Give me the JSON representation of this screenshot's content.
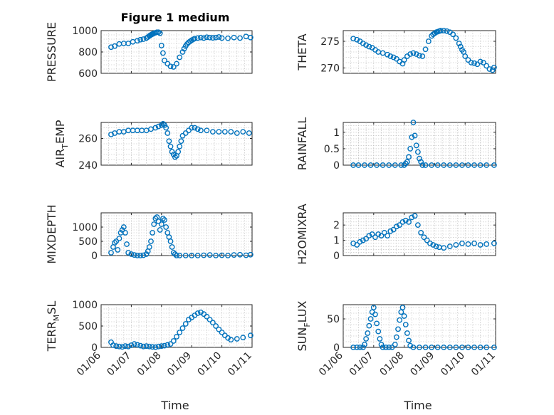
{
  "figure": {
    "title": "Figure 1 medium",
    "marker_color": "#0072BD",
    "x_label": "Time"
  },
  "chart_data": [
    {
      "type": "scatter",
      "id": "pressure",
      "title": "Figure 1 medium",
      "ylabel": "PRESSURE",
      "ylabel_main": "PRESSURE",
      "ylabel_sub": "",
      "ylabel_tail": "",
      "ylim": [
        600,
        1000
      ],
      "yticks": [
        600,
        800,
        1000
      ],
      "yticklabels": [
        "600",
        "800",
        "1000"
      ],
      "xlim": [
        0,
        5
      ],
      "xticklabels": [],
      "x": [
        0.33,
        0.45,
        0.6,
        0.75,
        0.9,
        1.05,
        1.2,
        1.3,
        1.4,
        1.5,
        1.55,
        1.6,
        1.62,
        1.65,
        1.68,
        1.7,
        1.72,
        1.75,
        1.8,
        1.85,
        1.9,
        1.95,
        2.0,
        2.05,
        2.1,
        2.2,
        2.3,
        2.4,
        2.5,
        2.6,
        2.7,
        2.75,
        2.8,
        2.85,
        2.9,
        2.95,
        3.0,
        3.05,
        3.1,
        3.2,
        3.3,
        3.4,
        3.5,
        3.6,
        3.7,
        3.8,
        3.9,
        4.0,
        4.2,
        4.4,
        4.6,
        4.8,
        4.95
      ],
      "y": [
        845,
        855,
        875,
        880,
        880,
        895,
        905,
        915,
        920,
        930,
        940,
        950,
        955,
        960,
        965,
        968,
        970,
        975,
        980,
        985,
        985,
        975,
        860,
        790,
        720,
        690,
        665,
        660,
        690,
        750,
        800,
        830,
        855,
        875,
        890,
        900,
        910,
        918,
        925,
        930,
        935,
        930,
        938,
        935,
        932,
        935,
        940,
        930,
        928,
        935,
        930,
        945,
        935
      ]
    },
    {
      "type": "scatter",
      "id": "theta",
      "ylabel": "THETA",
      "ylabel_main": "THETA",
      "ylabel_sub": "",
      "ylabel_tail": "",
      "ylim": [
        269,
        277
      ],
      "yticks": [
        270,
        275
      ],
      "yticklabels": [
        "270",
        "275"
      ],
      "xlim": [
        0,
        5
      ],
      "xticklabels": [],
      "x": [
        0.33,
        0.45,
        0.55,
        0.65,
        0.75,
        0.85,
        0.95,
        1.05,
        1.15,
        1.3,
        1.45,
        1.55,
        1.65,
        1.75,
        1.85,
        1.95,
        2.0,
        2.1,
        2.2,
        2.3,
        2.4,
        2.5,
        2.6,
        2.7,
        2.8,
        2.9,
        2.95,
        3.0,
        3.05,
        3.1,
        3.15,
        3.2,
        3.3,
        3.4,
        3.5,
        3.6,
        3.7,
        3.8,
        3.85,
        3.9,
        3.95,
        4.0,
        4.1,
        4.2,
        4.3,
        4.4,
        4.5,
        4.6,
        4.7,
        4.8,
        4.9,
        4.95
      ],
      "y": [
        275.5,
        275.3,
        275.0,
        274.6,
        274.3,
        274.0,
        273.8,
        273.4,
        273.0,
        272.8,
        272.5,
        272.2,
        272.0,
        271.7,
        271.2,
        270.8,
        271.5,
        272.2,
        272.6,
        272.8,
        272.6,
        272.3,
        272.2,
        273.5,
        275.0,
        276.0,
        276.3,
        276.5,
        276.7,
        276.8,
        276.9,
        277.0,
        277.0,
        276.9,
        276.7,
        276.3,
        275.6,
        274.6,
        274.0,
        273.4,
        273.0,
        272.2,
        271.5,
        271.0,
        270.9,
        270.7,
        271.2,
        271.0,
        270.4,
        269.8,
        269.6,
        270.1
      ]
    },
    {
      "type": "scatter",
      "id": "air_temp",
      "ylabel": "AIR_TEMP",
      "ylabel_main": "AIR",
      "ylabel_sub": "T",
      "ylabel_tail": "EMP",
      "ylim": [
        240,
        272
      ],
      "yticks": [
        240,
        260
      ],
      "yticklabels": [
        "240",
        "260"
      ],
      "xlim": [
        0,
        5
      ],
      "xticklabels": [],
      "x": [
        0.33,
        0.45,
        0.6,
        0.75,
        0.9,
        1.05,
        1.2,
        1.35,
        1.5,
        1.65,
        1.8,
        1.9,
        2.0,
        2.05,
        2.1,
        2.15,
        2.2,
        2.25,
        2.3,
        2.35,
        2.4,
        2.45,
        2.5,
        2.55,
        2.6,
        2.65,
        2.7,
        2.8,
        2.9,
        3.0,
        3.1,
        3.2,
        3.3,
        3.5,
        3.7,
        3.9,
        4.1,
        4.3,
        4.5,
        4.7,
        4.9
      ],
      "y": [
        263,
        264,
        265,
        265,
        266,
        266,
        266,
        266,
        266,
        267,
        268,
        269,
        270,
        271,
        270,
        268,
        264,
        258,
        254,
        250,
        248,
        246,
        247,
        250,
        254,
        258,
        262,
        264,
        266,
        268,
        268,
        267,
        266,
        266,
        265,
        265,
        265,
        265,
        264,
        265,
        264
      ]
    },
    {
      "type": "scatter",
      "id": "rainfall",
      "ylabel": "RAINFALL",
      "ylabel_main": "RAINFALL",
      "ylabel_sub": "",
      "ylabel_tail": "",
      "ylim": [
        0,
        1.3
      ],
      "yticks": [
        0,
        0.5,
        1
      ],
      "yticklabels": [
        "0",
        "0.5",
        "1"
      ],
      "xlim": [
        0,
        5
      ],
      "xticklabels": [],
      "x": [
        0.33,
        0.5,
        0.7,
        0.9,
        1.1,
        1.3,
        1.5,
        1.7,
        1.9,
        2.0,
        2.05,
        2.1,
        2.15,
        2.2,
        2.25,
        2.3,
        2.35,
        2.4,
        2.45,
        2.5,
        2.55,
        2.6,
        2.7,
        2.9,
        3.1,
        3.3,
        3.5,
        3.7,
        3.9,
        4.1,
        4.3,
        4.5,
        4.7,
        4.95
      ],
      "y": [
        0,
        0,
        0,
        0,
        0,
        0,
        0,
        0,
        0,
        0,
        0.05,
        0.1,
        0.25,
        0.5,
        0.85,
        1.3,
        0.9,
        0.6,
        0.4,
        0.2,
        0.1,
        0,
        0,
        0,
        0,
        0,
        0,
        0,
        0,
        0,
        0,
        0,
        0,
        0
      ]
    },
    {
      "type": "scatter",
      "id": "mixdepth",
      "ylabel": "MIXDEPTH",
      "ylabel_main": "MIXDEPTH",
      "ylabel_sub": "",
      "ylabel_tail": "",
      "ylim": [
        0,
        1500
      ],
      "yticks": [
        0,
        500,
        1000
      ],
      "yticklabels": [
        "0",
        "500",
        "1000"
      ],
      "xlim": [
        0,
        5
      ],
      "xticklabels": [],
      "x": [
        0.33,
        0.4,
        0.45,
        0.5,
        0.55,
        0.6,
        0.65,
        0.7,
        0.75,
        0.8,
        0.85,
        0.9,
        1.0,
        1.1,
        1.2,
        1.3,
        1.4,
        1.5,
        1.55,
        1.6,
        1.65,
        1.7,
        1.75,
        1.8,
        1.85,
        1.9,
        1.95,
        2.0,
        2.05,
        2.1,
        2.15,
        2.2,
        2.25,
        2.3,
        2.35,
        2.4,
        2.45,
        2.5,
        2.6,
        2.8,
        3.0,
        3.2,
        3.4,
        3.6,
        3.8,
        4.0,
        4.2,
        4.4,
        4.6,
        4.8,
        4.95
      ],
      "y": [
        100,
        300,
        450,
        500,
        200,
        600,
        800,
        900,
        1000,
        800,
        400,
        100,
        50,
        20,
        0,
        0,
        10,
        50,
        150,
        300,
        500,
        800,
        1100,
        1300,
        1350,
        1200,
        900,
        1100,
        1300,
        1250,
        1000,
        800,
        650,
        500,
        300,
        100,
        50,
        0,
        0,
        0,
        0,
        0,
        10,
        20,
        0,
        10,
        0,
        20,
        30,
        10,
        30
      ]
    },
    {
      "type": "scatter",
      "id": "h2omixra",
      "ylabel": "H2OMIXRA",
      "ylabel_main": "H2OMIXRA",
      "ylabel_sub": "",
      "ylabel_tail": "",
      "ylim": [
        0,
        2.8
      ],
      "yticks": [
        0,
        1,
        2
      ],
      "yticklabels": [
        "0",
        "1",
        "2"
      ],
      "xlim": [
        0,
        5
      ],
      "xticklabels": [],
      "x": [
        0.33,
        0.45,
        0.55,
        0.65,
        0.75,
        0.85,
        0.95,
        1.05,
        1.15,
        1.25,
        1.35,
        1.45,
        1.55,
        1.65,
        1.75,
        1.85,
        1.95,
        2.05,
        2.15,
        2.25,
        2.35,
        2.45,
        2.55,
        2.65,
        2.75,
        2.85,
        2.95,
        3.05,
        3.15,
        3.3,
        3.5,
        3.7,
        3.9,
        4.1,
        4.3,
        4.5,
        4.7,
        4.95
      ],
      "y": [
        0.8,
        0.7,
        0.9,
        1.0,
        1.1,
        1.3,
        1.4,
        1.2,
        1.4,
        1.3,
        1.5,
        1.3,
        1.6,
        1.7,
        1.9,
        2.0,
        2.2,
        2.3,
        2.2,
        2.5,
        2.6,
        2.0,
        1.5,
        1.2,
        1.0,
        0.8,
        0.7,
        0.6,
        0.55,
        0.5,
        0.6,
        0.7,
        0.8,
        0.75,
        0.8,
        0.7,
        0.75,
        0.8
      ]
    },
    {
      "type": "scatter",
      "id": "terr_msl",
      "ylabel": "TERR_MSL",
      "ylabel_main": "TERR",
      "ylabel_sub": "M",
      "ylabel_tail": "SL",
      "ylim": [
        0,
        1000
      ],
      "yticks": [
        0,
        500,
        1000
      ],
      "yticklabels": [
        "0",
        "500",
        "1000"
      ],
      "xlim": [
        0,
        5
      ],
      "xticklabels": [
        "01/06",
        "01/07",
        "01/08",
        "01/09",
        "01/10",
        "01/11"
      ],
      "x": [
        0.33,
        0.4,
        0.5,
        0.6,
        0.7,
        0.8,
        0.9,
        1.0,
        1.1,
        1.2,
        1.3,
        1.4,
        1.5,
        1.6,
        1.7,
        1.8,
        1.9,
        2.0,
        2.1,
        2.2,
        2.3,
        2.4,
        2.5,
        2.6,
        2.7,
        2.8,
        2.9,
        3.0,
        3.1,
        3.2,
        3.3,
        3.4,
        3.5,
        3.6,
        3.7,
        3.8,
        3.9,
        4.0,
        4.1,
        4.2,
        4.3,
        4.5,
        4.7,
        4.95
      ],
      "y": [
        120,
        50,
        30,
        20,
        10,
        30,
        20,
        50,
        80,
        60,
        40,
        20,
        30,
        20,
        10,
        5,
        20,
        30,
        40,
        60,
        80,
        150,
        250,
        350,
        450,
        550,
        650,
        700,
        750,
        800,
        820,
        780,
        720,
        650,
        580,
        500,
        420,
        350,
        280,
        220,
        180,
        200,
        230,
        280
      ]
    },
    {
      "type": "scatter",
      "id": "sun_flux",
      "ylabel": "SUN_FLUX",
      "ylabel_main": "SUN",
      "ylabel_sub": "F",
      "ylabel_tail": "LUX",
      "ylim": [
        0,
        75
      ],
      "yticks": [
        0,
        50
      ],
      "yticklabels": [
        "0",
        "50"
      ],
      "xlim": [
        0,
        5
      ],
      "xticklabels": [
        "01/06",
        "01/07",
        "01/08",
        "01/09",
        "01/10",
        "01/11"
      ],
      "x": [
        0.33,
        0.45,
        0.55,
        0.65,
        0.7,
        0.75,
        0.8,
        0.85,
        0.9,
        0.95,
        1.0,
        1.05,
        1.1,
        1.15,
        1.2,
        1.25,
        1.3,
        1.4,
        1.5,
        1.6,
        1.7,
        1.75,
        1.8,
        1.85,
        1.9,
        1.95,
        2.0,
        2.05,
        2.1,
        2.15,
        2.2,
        2.3,
        2.5,
        2.7,
        2.9,
        3.1,
        3.3,
        3.5,
        3.7,
        3.9,
        4.1,
        4.3,
        4.5,
        4.7,
        4.95
      ],
      "y": [
        0,
        0,
        0,
        0,
        5,
        15,
        25,
        38,
        50,
        62,
        70,
        58,
        42,
        28,
        15,
        5,
        0,
        0,
        0,
        0,
        5,
        18,
        32,
        48,
        62,
        70,
        55,
        40,
        25,
        12,
        3,
        0,
        0,
        0,
        0,
        0,
        0,
        0,
        0,
        0,
        0,
        0,
        0,
        0,
        0
      ]
    }
  ]
}
